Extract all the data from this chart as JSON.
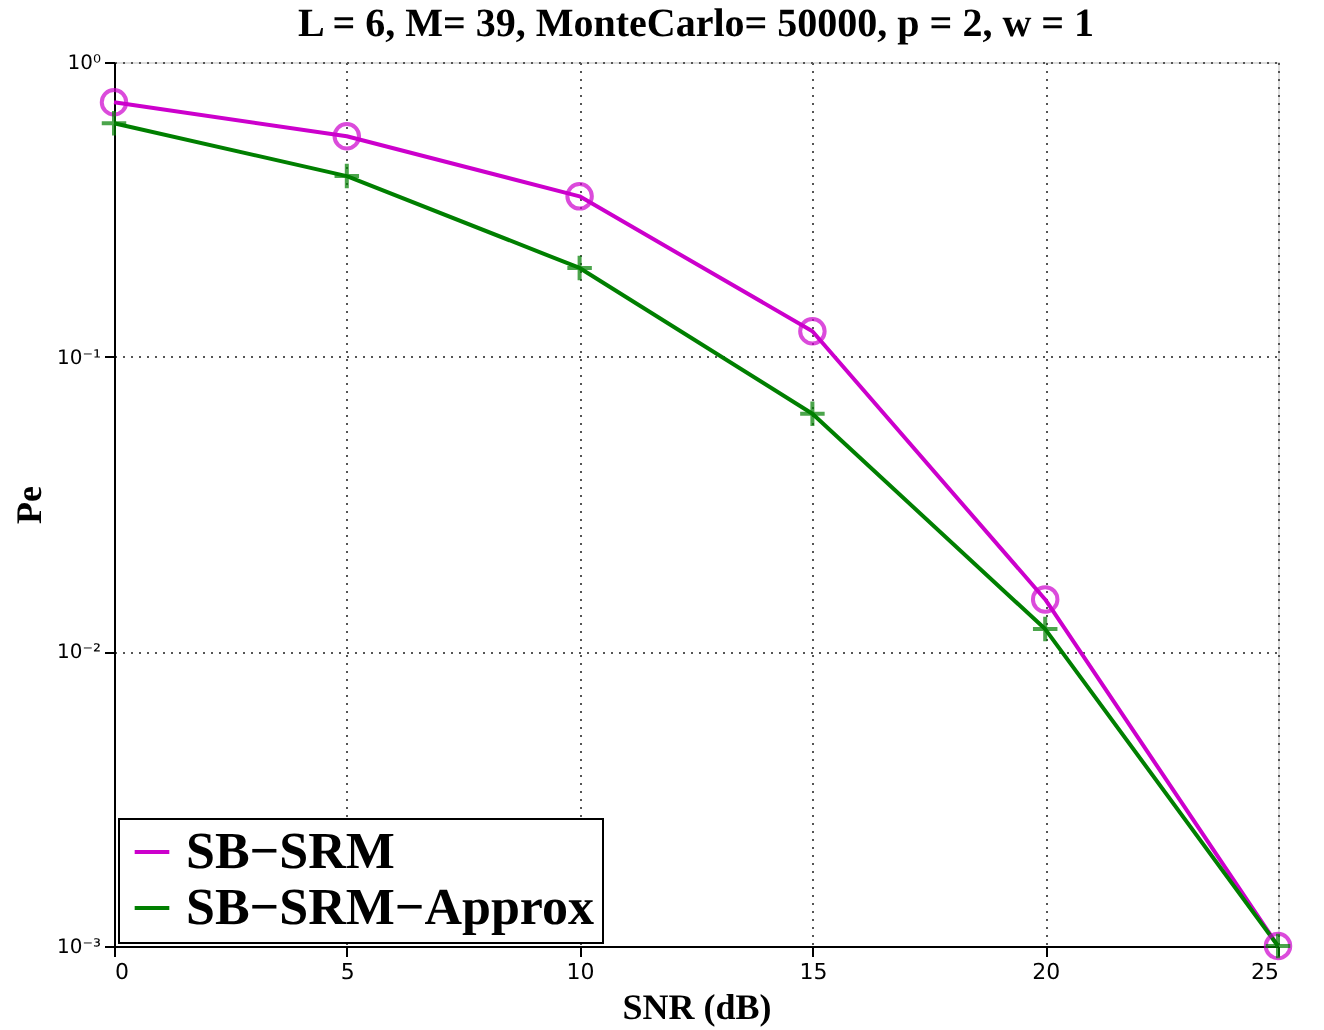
{
  "chart_data": {
    "type": "line",
    "title": "L = 6, M= 39, MonteCarlo= 50000, p = 2, w = 1",
    "xlabel": "SNR (dB)",
    "ylabel": "Pe",
    "x": [
      0,
      5,
      10,
      15,
      20,
      25
    ],
    "series": [
      {
        "name": "SB−SRM",
        "color": "#cc00cc",
        "marker": "circle",
        "values": [
          0.73,
          0.56,
          0.35,
          0.122,
          0.015,
          0.001
        ]
      },
      {
        "name": "SB−SRM−Approx",
        "color": "#007f00",
        "marker": "cross",
        "values": [
          0.62,
          0.41,
          0.2,
          0.064,
          0.0119,
          0.001
        ]
      }
    ],
    "log": "y",
    "xlim": [
      0,
      25
    ],
    "xticks": [
      0,
      5,
      10,
      15,
      20,
      25
    ],
    "ylim": [
      0.001,
      1
    ],
    "yticks": [
      {
        "value": 0.001,
        "label": "10⁻³"
      },
      {
        "value": 0.01,
        "label": "10⁻²"
      },
      {
        "value": 0.1,
        "label": "10⁻¹"
      },
      {
        "value": 1,
        "label": "10⁰"
      }
    ],
    "grid": true,
    "legend": "bottom left",
    "line_style": "solid"
  }
}
